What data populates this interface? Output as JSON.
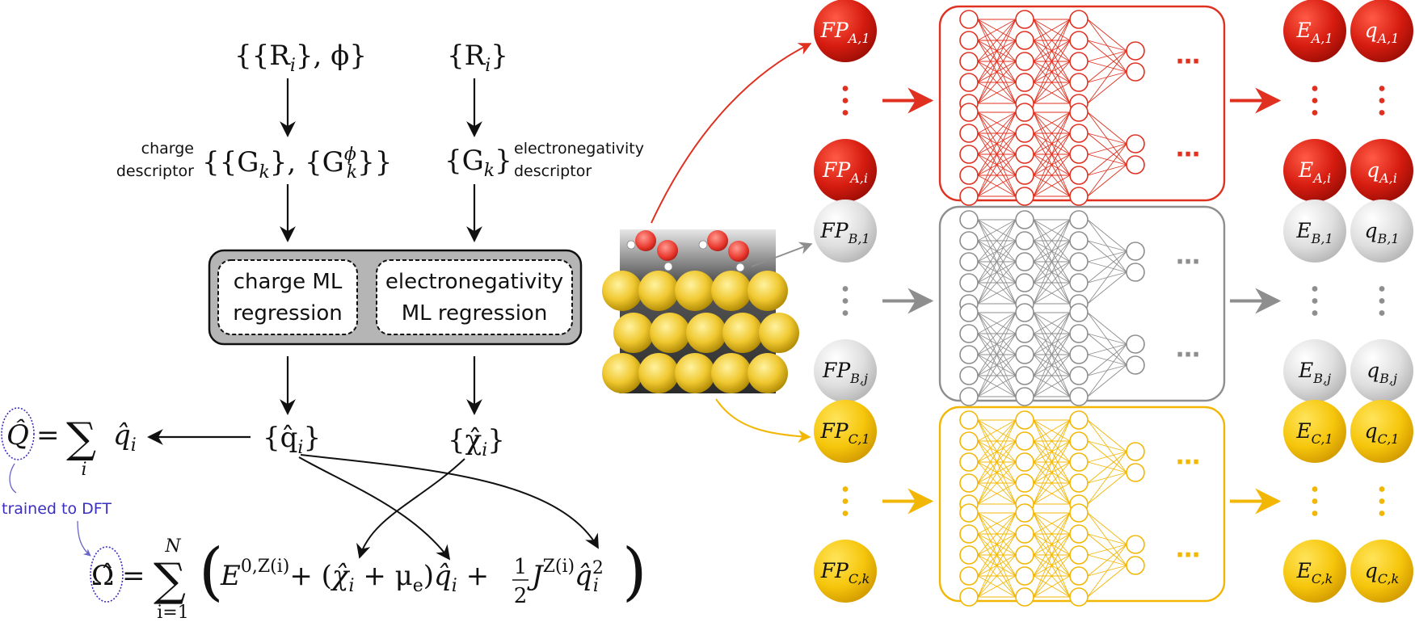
{
  "colors": {
    "red": "#e03020",
    "gray": "#8e8e8e",
    "yellow": "#f2b705",
    "blue": "#3a2fc0",
    "ml_box_fill": "#b5b5b5"
  },
  "left_diagram": {
    "input_left": "{{R",
    "input_left_sub": "i",
    "input_left_tail": "}, ϕ}",
    "input_right": "{R",
    "input_right_sub": "i",
    "input_right_tail": "}",
    "charge_descriptor_label": [
      "charge",
      "descriptor"
    ],
    "charge_descriptor_math": "{{G",
    "charge_descriptor_k": "k",
    "charge_descriptor_mid": "}, {G",
    "charge_descriptor_phi": "ϕ",
    "charge_descriptor_k2": "k",
    "charge_descriptor_end": "}}",
    "en_descriptor_math": "{G",
    "en_descriptor_k": "k",
    "en_descriptor_end": "}",
    "en_descriptor_label": [
      "electronegativity",
      "descriptor"
    ],
    "charge_ml": [
      "charge ML",
      "regression"
    ],
    "en_ml": [
      "electronegativity",
      "ML regression"
    ],
    "q_hat_set": "{q̂",
    "q_hat_sub": "i",
    "q_hat_end": "}",
    "chi_hat_set": "{χ̂",
    "chi_hat_sub": "i",
    "chi_hat_end": "}",
    "Q_hat": "Q̂",
    "Q_eq": "=",
    "Q_sum_index": "i",
    "Q_term": "q̂",
    "Q_term_sub": "i",
    "trained_label": "trained to DFT",
    "omega_hat": "Ω̂",
    "omega_eq": "=",
    "omega_sum_top": "N",
    "omega_sum_bottom": "i=1",
    "omega_E": "E",
    "omega_E_sup": "0,Z(i)",
    "omega_plus1": "+ (",
    "omega_chi": "χ̂",
    "omega_chi_sub": "i",
    "omega_mu": " + μ",
    "omega_mu_sub": "e",
    "omega_close": ")",
    "omega_q": "q̂",
    "omega_q_sub": "i",
    "omega_plus2": " + ",
    "omega_half_num": "1",
    "omega_half_den": "2",
    "omega_J": "J",
    "omega_J_sup": "Z(i)",
    "omega_q2": "q̂",
    "omega_q2_sub": "i",
    "omega_q2_sup": "2"
  },
  "right_diagram": {
    "rows": [
      {
        "element": "A",
        "color": "red",
        "fp_top": {
          "base": "FP",
          "sub": "A,1"
        },
        "fp_bottom": {
          "base": "FP",
          "sub": "A,i"
        },
        "e_top": {
          "base": "E",
          "sub": "A,1"
        },
        "e_bottom": {
          "base": "E",
          "sub": "A,i"
        },
        "q_top": {
          "base": "q",
          "sub": "A,1"
        },
        "q_bottom": {
          "base": "q",
          "sub": "A,i"
        }
      },
      {
        "element": "B",
        "color": "gray",
        "fp_top": {
          "base": "FP",
          "sub": "B,1"
        },
        "fp_bottom": {
          "base": "FP",
          "sub": "B,j"
        },
        "e_top": {
          "base": "E",
          "sub": "B,1"
        },
        "e_bottom": {
          "base": "E",
          "sub": "B,j"
        },
        "q_top": {
          "base": "q",
          "sub": "B,1"
        },
        "q_bottom": {
          "base": "q",
          "sub": "B,j"
        }
      },
      {
        "element": "C",
        "color": "yellow",
        "fp_top": {
          "base": "FP",
          "sub": "C,1"
        },
        "fp_bottom": {
          "base": "FP",
          "sub": "C,k"
        },
        "e_top": {
          "base": "E",
          "sub": "C,1"
        },
        "e_bottom": {
          "base": "E",
          "sub": "C,k"
        },
        "q_top": {
          "base": "q",
          "sub": "C,1"
        },
        "q_bottom": {
          "base": "q",
          "sub": "C,k"
        }
      }
    ],
    "network_layers": [
      5,
      5,
      5,
      2
    ],
    "ellipsis": "⋯"
  }
}
